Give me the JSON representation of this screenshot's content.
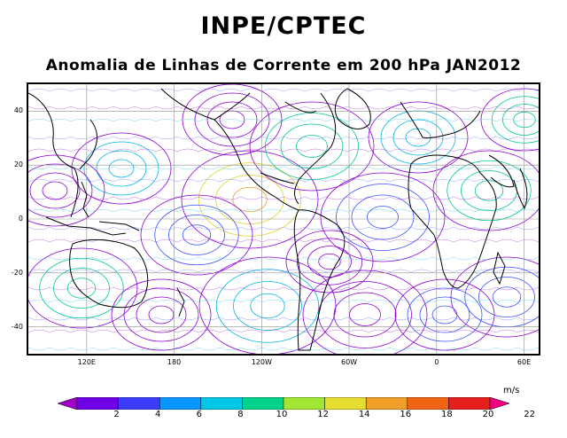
{
  "header": {
    "title": "INPE/CPTEC",
    "subtitle": "Anomalia de Linhas de Corrente em 200 hPa JAN2012"
  },
  "map": {
    "lat_ticks": [
      {
        "value": 40,
        "label": "40"
      },
      {
        "value": 20,
        "label": "20"
      },
      {
        "value": 0,
        "label": "0"
      },
      {
        "value": -20,
        "label": "-20"
      },
      {
        "value": -40,
        "label": "-40"
      }
    ],
    "lon_ticks": [
      {
        "value": 120,
        "label": "120E"
      },
      {
        "value": 180,
        "label": "180"
      },
      {
        "value": 240,
        "label": "120W"
      },
      {
        "value": 300,
        "label": "60W"
      },
      {
        "value": 360,
        "label": "0"
      },
      {
        "value": 420,
        "label": "60E"
      }
    ],
    "lon_range": [
      80,
      430
    ],
    "lat_range": [
      -50,
      50
    ]
  },
  "colorbar": {
    "units": "m/s",
    "labels": [
      "2",
      "4",
      "6",
      "8",
      "10",
      "12",
      "14",
      "16",
      "18",
      "20",
      "22"
    ],
    "colors": [
      "#a000c8",
      "#6e00e6",
      "#3c3cff",
      "#0a96ff",
      "#00c8e6",
      "#00d28c",
      "#a0e632",
      "#e6dc32",
      "#f0a028",
      "#f06414",
      "#e61e1e",
      "#f00082"
    ]
  },
  "streamline_colors": {
    "purple": "#8c00d2",
    "blue": "#3c50ff",
    "cyan": "#00b4e6",
    "teal": "#00c896",
    "yellow": "#dcd228",
    "orange": "#f09628",
    "red": "#e6283c"
  }
}
